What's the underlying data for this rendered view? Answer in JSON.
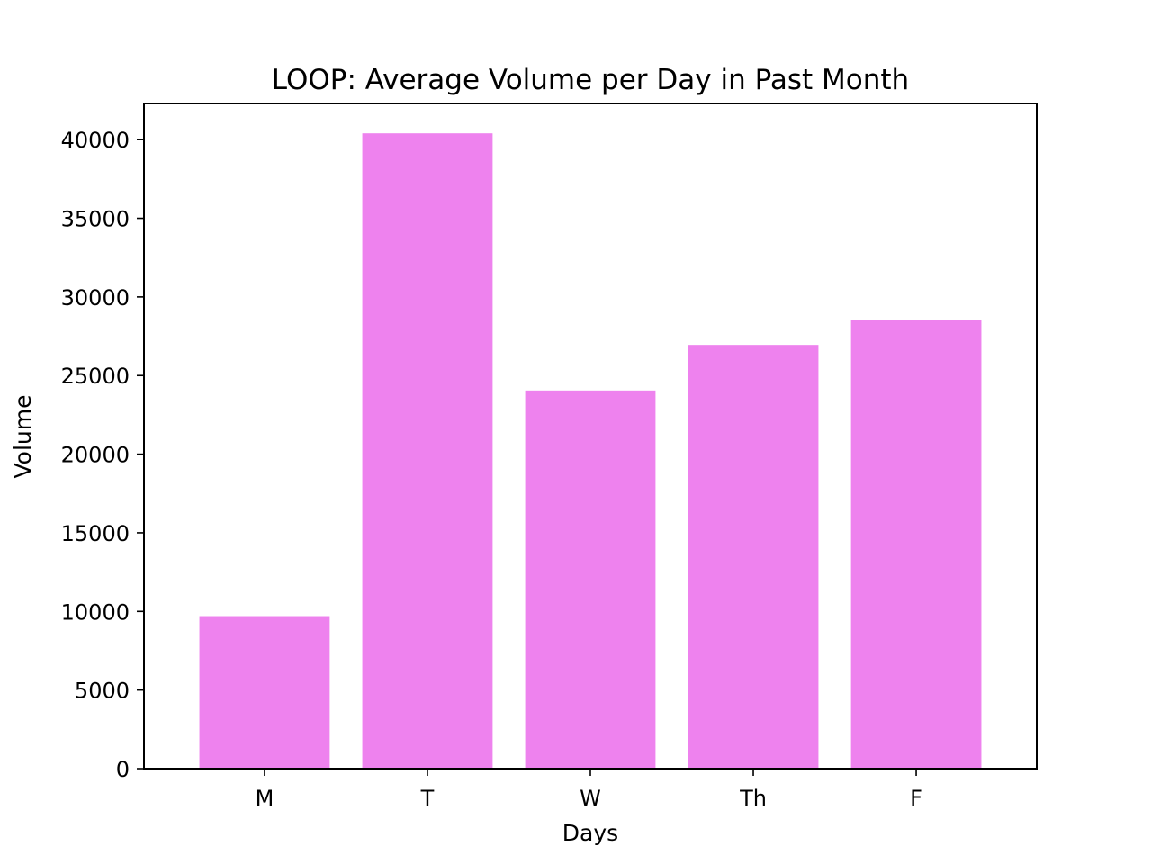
{
  "chart_data": {
    "type": "bar",
    "title": "LOOP: Average Volume per Day in Past Month",
    "xlabel": "Days",
    "ylabel": "Volume",
    "categories": [
      "M",
      "T",
      "W",
      "Th",
      "F"
    ],
    "values": [
      9700,
      40400,
      24050,
      26950,
      28550
    ],
    "ylim": [
      0,
      42300
    ],
    "yticks": [
      0,
      5000,
      10000,
      15000,
      20000,
      25000,
      30000,
      35000,
      40000
    ],
    "bar_color": "#ee82ee",
    "grid": false,
    "legend": "none"
  }
}
